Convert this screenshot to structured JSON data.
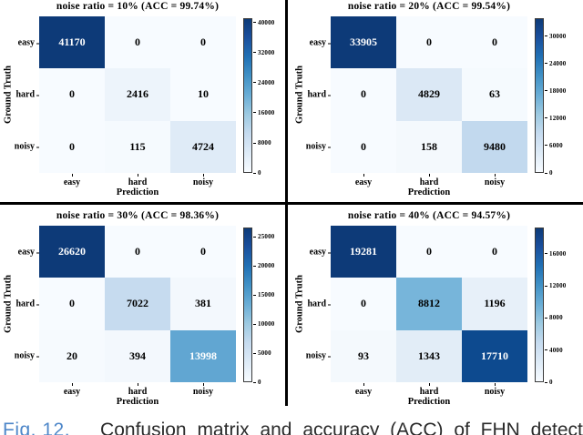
{
  "caption": {
    "label": "Fig. 12.",
    "label_color": "#4e87c9",
    "text": "Confusion matrix and accuracy (ACC) of FHN detection"
  },
  "panels": [
    {
      "title": "noise ratio = 10% (ACC = 99.74%)",
      "xlabel": "Prediction",
      "ylabel": "Ground Truth",
      "x_ticks": [
        "easy",
        "hard",
        "noisy"
      ],
      "y_ticks": [
        "easy",
        "hard",
        "noisy"
      ],
      "cells": [
        {
          "v": "41170",
          "bg": "#0d3a78",
          "fg": "#ffffff"
        },
        {
          "v": "0",
          "bg": "#f7fbff",
          "fg": "#000000"
        },
        {
          "v": "0",
          "bg": "#f7fbff",
          "fg": "#000000"
        },
        {
          "v": "0",
          "bg": "#f7fbff",
          "fg": "#000000"
        },
        {
          "v": "2416",
          "bg": "#edf4fb",
          "fg": "#000000"
        },
        {
          "v": "10",
          "bg": "#f7fbff",
          "fg": "#000000"
        },
        {
          "v": "0",
          "bg": "#f7fbff",
          "fg": "#000000"
        },
        {
          "v": "115",
          "bg": "#f5fafe",
          "fg": "#000000"
        },
        {
          "v": "4724",
          "bg": "#dfebf7",
          "fg": "#000000"
        }
      ],
      "colorbar_ticks": [
        {
          "label": "40000",
          "top": "2.8%"
        },
        {
          "label": "32000",
          "top": "22.3%"
        },
        {
          "label": "24000",
          "top": "41.7%"
        },
        {
          "label": "16000",
          "top": "61.1%"
        },
        {
          "label": "8000",
          "top": "80.6%"
        },
        {
          "label": "0",
          "top": "100%"
        }
      ]
    },
    {
      "title": "noise ratio = 20% (ACC = 99.54%)",
      "xlabel": "Prediction",
      "ylabel": "Ground Truth",
      "x_ticks": [
        "easy",
        "hard",
        "noisy"
      ],
      "y_ticks": [
        "easy",
        "hard",
        "noisy"
      ],
      "cells": [
        {
          "v": "33905",
          "bg": "#0d3a78",
          "fg": "#ffffff"
        },
        {
          "v": "0",
          "bg": "#f7fbff",
          "fg": "#000000"
        },
        {
          "v": "0",
          "bg": "#f7fbff",
          "fg": "#000000"
        },
        {
          "v": "0",
          "bg": "#f7fbff",
          "fg": "#000000"
        },
        {
          "v": "4829",
          "bg": "#dbe8f5",
          "fg": "#000000"
        },
        {
          "v": "63",
          "bg": "#f5fafe",
          "fg": "#000000"
        },
        {
          "v": "0",
          "bg": "#f7fbff",
          "fg": "#000000"
        },
        {
          "v": "158",
          "bg": "#f4f9fd",
          "fg": "#000000"
        },
        {
          "v": "9480",
          "bg": "#c2d9ee",
          "fg": "#000000"
        }
      ],
      "colorbar_ticks": [
        {
          "label": "30000",
          "top": "11.5%"
        },
        {
          "label": "24000",
          "top": "29.2%"
        },
        {
          "label": "18000",
          "top": "46.9%"
        },
        {
          "label": "12000",
          "top": "64.6%"
        },
        {
          "label": "6000",
          "top": "82.3%"
        },
        {
          "label": "0",
          "top": "100%"
        }
      ]
    },
    {
      "title": "noise ratio = 30% (ACC = 98.36%)",
      "xlabel": "Prediction",
      "ylabel": "Ground Truth",
      "x_ticks": [
        "easy",
        "hard",
        "noisy"
      ],
      "y_ticks": [
        "easy",
        "hard",
        "noisy"
      ],
      "cells": [
        {
          "v": "26620",
          "bg": "#0d3a78",
          "fg": "#ffffff"
        },
        {
          "v": "0",
          "bg": "#f7fbff",
          "fg": "#000000"
        },
        {
          "v": "0",
          "bg": "#f7fbff",
          "fg": "#000000"
        },
        {
          "v": "0",
          "bg": "#f7fbff",
          "fg": "#000000"
        },
        {
          "v": "7022",
          "bg": "#c6dbef",
          "fg": "#000000"
        },
        {
          "v": "381",
          "bg": "#f3f8fd",
          "fg": "#000000"
        },
        {
          "v": "20",
          "bg": "#f6fafe",
          "fg": "#000000"
        },
        {
          "v": "394",
          "bg": "#f3f8fd",
          "fg": "#000000"
        },
        {
          "v": "13998",
          "bg": "#61a6d2",
          "fg": "#ffffff"
        }
      ],
      "colorbar_ticks": [
        {
          "label": "25000",
          "top": "6.1%"
        },
        {
          "label": "20000",
          "top": "24.9%"
        },
        {
          "label": "15000",
          "top": "43.6%"
        },
        {
          "label": "10000",
          "top": "62.4%"
        },
        {
          "label": "5000",
          "top": "81.2%"
        },
        {
          "label": "0",
          "top": "100%"
        }
      ]
    },
    {
      "title": "noise ratio = 40% (ACC = 94.57%)",
      "xlabel": "Prediction",
      "ylabel": "Ground Truth",
      "x_ticks": [
        "easy",
        "hard",
        "noisy"
      ],
      "y_ticks": [
        "easy",
        "hard",
        "noisy"
      ],
      "cells": [
        {
          "v": "19281",
          "bg": "#0d3a78",
          "fg": "#ffffff"
        },
        {
          "v": "0",
          "bg": "#f7fbff",
          "fg": "#000000"
        },
        {
          "v": "0",
          "bg": "#f7fbff",
          "fg": "#000000"
        },
        {
          "v": "0",
          "bg": "#f7fbff",
          "fg": "#000000"
        },
        {
          "v": "8812",
          "bg": "#77b5da",
          "fg": "#000000"
        },
        {
          "v": "1196",
          "bg": "#e7f0f9",
          "fg": "#000000"
        },
        {
          "v": "93",
          "bg": "#f4f9fd",
          "fg": "#000000"
        },
        {
          "v": "1343",
          "bg": "#e2edf7",
          "fg": "#000000"
        },
        {
          "v": "17710",
          "bg": "#0d4a8f",
          "fg": "#ffffff"
        }
      ],
      "colorbar_ticks": [
        {
          "label": "16000",
          "top": "17.0%"
        },
        {
          "label": "12000",
          "top": "37.8%"
        },
        {
          "label": "8000",
          "top": "58.5%"
        },
        {
          "label": "4000",
          "top": "79.3%"
        },
        {
          "label": "0",
          "top": "100%"
        }
      ]
    }
  ],
  "chart_data": [
    {
      "type": "heatmap",
      "title": "noise ratio = 10% (ACC = 99.74%)",
      "noise_ratio": "10%",
      "accuracy": "99.74%",
      "xlabel": "Prediction",
      "ylabel": "Ground Truth",
      "x_categories": [
        "easy",
        "hard",
        "noisy"
      ],
      "y_categories": [
        "easy",
        "hard",
        "noisy"
      ],
      "values": [
        [
          41170,
          0,
          0
        ],
        [
          0,
          2416,
          10
        ],
        [
          0,
          115,
          4724
        ]
      ],
      "colormap": "Blues",
      "vmin": 0,
      "vmax": 41170,
      "colorbar_ticks": [
        40000,
        32000,
        24000,
        16000,
        8000,
        0
      ],
      "legend_position": "right-colorbar",
      "grid": false
    },
    {
      "type": "heatmap",
      "title": "noise ratio = 20% (ACC = 99.54%)",
      "noise_ratio": "20%",
      "accuracy": "99.54%",
      "xlabel": "Prediction",
      "ylabel": "Ground Truth",
      "x_categories": [
        "easy",
        "hard",
        "noisy"
      ],
      "y_categories": [
        "easy",
        "hard",
        "noisy"
      ],
      "values": [
        [
          33905,
          0,
          0
        ],
        [
          0,
          4829,
          63
        ],
        [
          0,
          158,
          9480
        ]
      ],
      "colormap": "Blues",
      "vmin": 0,
      "vmax": 33905,
      "colorbar_ticks": [
        30000,
        24000,
        18000,
        12000,
        6000,
        0
      ],
      "legend_position": "right-colorbar",
      "grid": false
    },
    {
      "type": "heatmap",
      "title": "noise ratio = 30% (ACC = 98.36%)",
      "noise_ratio": "30%",
      "accuracy": "98.36%",
      "xlabel": "Prediction",
      "ylabel": "Ground Truth",
      "x_categories": [
        "easy",
        "hard",
        "noisy"
      ],
      "y_categories": [
        "easy",
        "hard",
        "noisy"
      ],
      "values": [
        [
          26620,
          0,
          0
        ],
        [
          0,
          7022,
          381
        ],
        [
          20,
          394,
          13998
        ]
      ],
      "colormap": "Blues",
      "vmin": 0,
      "vmax": 26620,
      "colorbar_ticks": [
        25000,
        20000,
        15000,
        10000,
        5000,
        0
      ],
      "legend_position": "right-colorbar",
      "grid": false
    },
    {
      "type": "heatmap",
      "title": "noise ratio = 40% (ACC = 94.57%)",
      "noise_ratio": "40%",
      "accuracy": "94.57%",
      "xlabel": "Prediction",
      "ylabel": "Ground Truth",
      "x_categories": [
        "easy",
        "hard",
        "noisy"
      ],
      "y_categories": [
        "easy",
        "hard",
        "noisy"
      ],
      "values": [
        [
          19281,
          0,
          0
        ],
        [
          0,
          8812,
          1196
        ],
        [
          93,
          1343,
          17710
        ]
      ],
      "colormap": "Blues",
      "vmin": 0,
      "vmax": 19281,
      "colorbar_ticks": [
        16000,
        12000,
        8000,
        4000,
        0
      ],
      "legend_position": "right-colorbar",
      "grid": false
    }
  ]
}
